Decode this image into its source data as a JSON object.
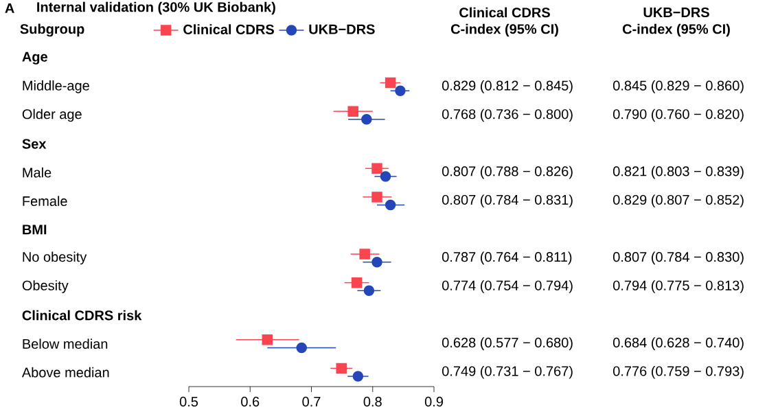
{
  "chart_data": {
    "type": "scatter",
    "orientation": "horizontal",
    "title": "Internal validation (30% UK Biobank)",
    "ylabel": "Subgroup",
    "annotations": [
      "A",
      "Clinical CDRS",
      "C-index (95% CI)",
      "UKB−DRS",
      "C-index (95% CI)"
    ],
    "categories": [
      "Age",
      "Middle-age",
      "Older age",
      "Sex",
      "Male",
      "Female",
      "BMI",
      "No obesity",
      "Obesity",
      "Clinical CDRS risk",
      "Below median",
      "Above median"
    ],
    "series": [
      {
        "name": "Clinical CDRS",
        "color": "#f8454f",
        "marker": "square",
        "values": [
          null,
          0.829,
          0.768,
          null,
          0.807,
          0.807,
          null,
          0.787,
          0.774,
          null,
          0.628,
          0.749
        ],
        "errors": [
          null,
          [
            0.812,
            0.845
          ],
          [
            0.736,
            0.8
          ],
          null,
          [
            0.788,
            0.826
          ],
          [
            0.784,
            0.831
          ],
          null,
          [
            0.764,
            0.811
          ],
          [
            0.754,
            0.794
          ],
          null,
          [
            0.577,
            0.68
          ],
          [
            0.731,
            0.767
          ]
        ],
        "value_labels": [
          null,
          "0.829 (0.812 − 0.845)",
          "0.768 (0.736 − 0.800)",
          null,
          "0.807 (0.788 − 0.826)",
          "0.807 (0.784 − 0.831)",
          null,
          "0.787 (0.764 − 0.811)",
          "0.774 (0.754 − 0.794)",
          null,
          "0.628 (0.577 − 0.680)",
          "0.749 (0.731 − 0.767)"
        ]
      },
      {
        "name": "UKB−DRS",
        "color": "#2546b8",
        "marker": "circle",
        "values": [
          null,
          0.845,
          0.79,
          null,
          0.821,
          0.829,
          null,
          0.807,
          0.794,
          null,
          0.684,
          0.776
        ],
        "errors": [
          null,
          [
            0.829,
            0.86
          ],
          [
            0.76,
            0.82
          ],
          null,
          [
            0.803,
            0.839
          ],
          [
            0.807,
            0.852
          ],
          null,
          [
            0.784,
            0.83
          ],
          [
            0.775,
            0.813
          ],
          null,
          [
            0.628,
            0.74
          ],
          [
            0.759,
            0.793
          ]
        ],
        "value_labels": [
          null,
          "0.845 (0.829 − 0.860)",
          "0.790 (0.760 − 0.820)",
          null,
          "0.821 (0.803 − 0.839)",
          "0.829 (0.807 − 0.852)",
          null,
          "0.807 (0.784 − 0.830)",
          "0.794 (0.775 − 0.813)",
          null,
          "0.684 (0.628 − 0.740)",
          "0.776 (0.759 − 0.793)"
        ]
      }
    ],
    "legend": "top",
    "xlim": [
      0.5,
      0.9
    ],
    "xticks": [
      0.5,
      0.6,
      0.7,
      0.8,
      0.9
    ]
  }
}
